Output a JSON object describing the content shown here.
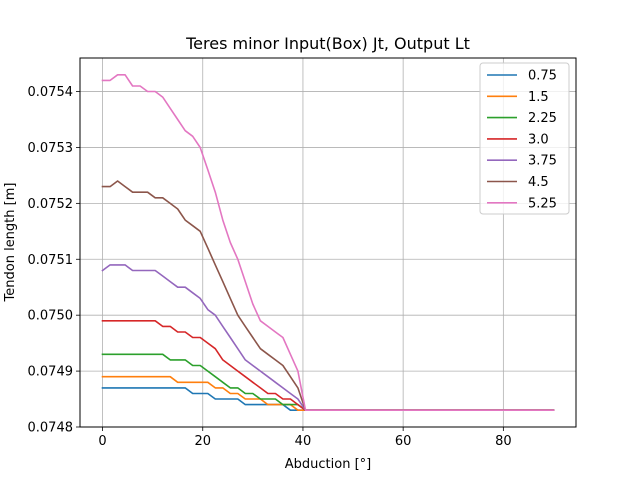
{
  "chart_data": {
    "type": "line",
    "title": "Teres minor Input(Box) Jt, Output Lt",
    "xlabel": "Abduction [°]",
    "ylabel": "Tendon length [m]",
    "xlim": [
      -4.5,
      94.5
    ],
    "ylim": [
      0.0748,
      0.07546
    ],
    "xticks": [
      0,
      20,
      40,
      60,
      80
    ],
    "xtick_labels": [
      "0",
      "20",
      "40",
      "60",
      "80"
    ],
    "yticks": [
      0.0748,
      0.0749,
      0.075,
      0.0751,
      0.0752,
      0.0753,
      0.0754
    ],
    "ytick_labels": [
      "0.0748",
      "0.0749",
      "0.0750",
      "0.0751",
      "0.0752",
      "0.0753",
      "0.0754"
    ],
    "grid": true,
    "legend_position": "top-right",
    "x": [
      0,
      1.5,
      3,
      4.5,
      6,
      7.5,
      9,
      10.5,
      12,
      13.5,
      15,
      16.5,
      18,
      19.5,
      21,
      22.5,
      24,
      25.5,
      27,
      28.5,
      30,
      31.5,
      33,
      34.5,
      36,
      37.5,
      39,
      40.5,
      42,
      90
    ],
    "series": [
      {
        "name": "0.75",
        "color": "#1f77b4",
        "values": [
          0.07487,
          0.07487,
          0.07487,
          0.07487,
          0.07487,
          0.07487,
          0.07487,
          0.07487,
          0.07487,
          0.07487,
          0.07487,
          0.07487,
          0.07486,
          0.07486,
          0.07486,
          0.07485,
          0.07485,
          0.07485,
          0.07485,
          0.07484,
          0.07484,
          0.07484,
          0.07484,
          0.07484,
          0.07484,
          0.07483,
          0.07483,
          0.07483,
          0.07483,
          0.07483
        ]
      },
      {
        "name": "1.5",
        "color": "#ff7f0e",
        "values": [
          0.07489,
          0.07489,
          0.07489,
          0.07489,
          0.07489,
          0.07489,
          0.07489,
          0.07489,
          0.07489,
          0.07489,
          0.07488,
          0.07488,
          0.07488,
          0.07488,
          0.07488,
          0.07487,
          0.07487,
          0.07486,
          0.07486,
          0.07485,
          0.07485,
          0.07485,
          0.07484,
          0.07484,
          0.07484,
          0.07484,
          0.07483,
          0.07483,
          0.07483,
          0.07483
        ]
      },
      {
        "name": "2.25",
        "color": "#2ca02c",
        "values": [
          0.07493,
          0.07493,
          0.07493,
          0.07493,
          0.07493,
          0.07493,
          0.07493,
          0.07493,
          0.07493,
          0.07492,
          0.07492,
          0.07492,
          0.07491,
          0.07491,
          0.0749,
          0.07489,
          0.07488,
          0.07487,
          0.07487,
          0.07486,
          0.07486,
          0.07485,
          0.07485,
          0.07485,
          0.07484,
          0.07484,
          0.07484,
          0.07483,
          0.07483,
          0.07483
        ]
      },
      {
        "name": "3.0",
        "color": "#d62728",
        "values": [
          0.07499,
          0.07499,
          0.07499,
          0.07499,
          0.07499,
          0.07499,
          0.07499,
          0.07499,
          0.07498,
          0.07498,
          0.07497,
          0.07497,
          0.07496,
          0.07496,
          0.07495,
          0.07494,
          0.07492,
          0.07491,
          0.0749,
          0.07489,
          0.07488,
          0.07487,
          0.07486,
          0.07486,
          0.07485,
          0.07485,
          0.07484,
          0.07483,
          0.07483,
          0.07483
        ]
      },
      {
        "name": "3.75",
        "color": "#9467bd",
        "values": [
          0.07508,
          0.07509,
          0.07509,
          0.07509,
          0.07508,
          0.07508,
          0.07508,
          0.07508,
          0.07507,
          0.07506,
          0.07505,
          0.07505,
          0.07504,
          0.07503,
          0.07501,
          0.075,
          0.07498,
          0.07496,
          0.07494,
          0.07492,
          0.07491,
          0.0749,
          0.07489,
          0.07488,
          0.07487,
          0.07486,
          0.07485,
          0.07483,
          0.07483,
          0.07483
        ]
      },
      {
        "name": "4.5",
        "color": "#8c564b",
        "values": [
          0.07523,
          0.07523,
          0.07524,
          0.07523,
          0.07522,
          0.07522,
          0.07522,
          0.07521,
          0.07521,
          0.0752,
          0.07519,
          0.07517,
          0.07516,
          0.07515,
          0.07512,
          0.07509,
          0.07506,
          0.07503,
          0.075,
          0.07498,
          0.07496,
          0.07494,
          0.07493,
          0.07492,
          0.07491,
          0.07489,
          0.07487,
          0.07483,
          0.07483,
          0.07483
        ]
      },
      {
        "name": "5.25",
        "color": "#e377c2",
        "values": [
          0.07542,
          0.07542,
          0.07543,
          0.07543,
          0.07541,
          0.07541,
          0.0754,
          0.0754,
          0.07539,
          0.07537,
          0.07535,
          0.07533,
          0.07532,
          0.0753,
          0.07526,
          0.07522,
          0.07517,
          0.07513,
          0.0751,
          0.07506,
          0.07502,
          0.07499,
          0.07498,
          0.07497,
          0.07496,
          0.07493,
          0.0749,
          0.07483,
          0.07483,
          0.07483
        ]
      }
    ]
  }
}
